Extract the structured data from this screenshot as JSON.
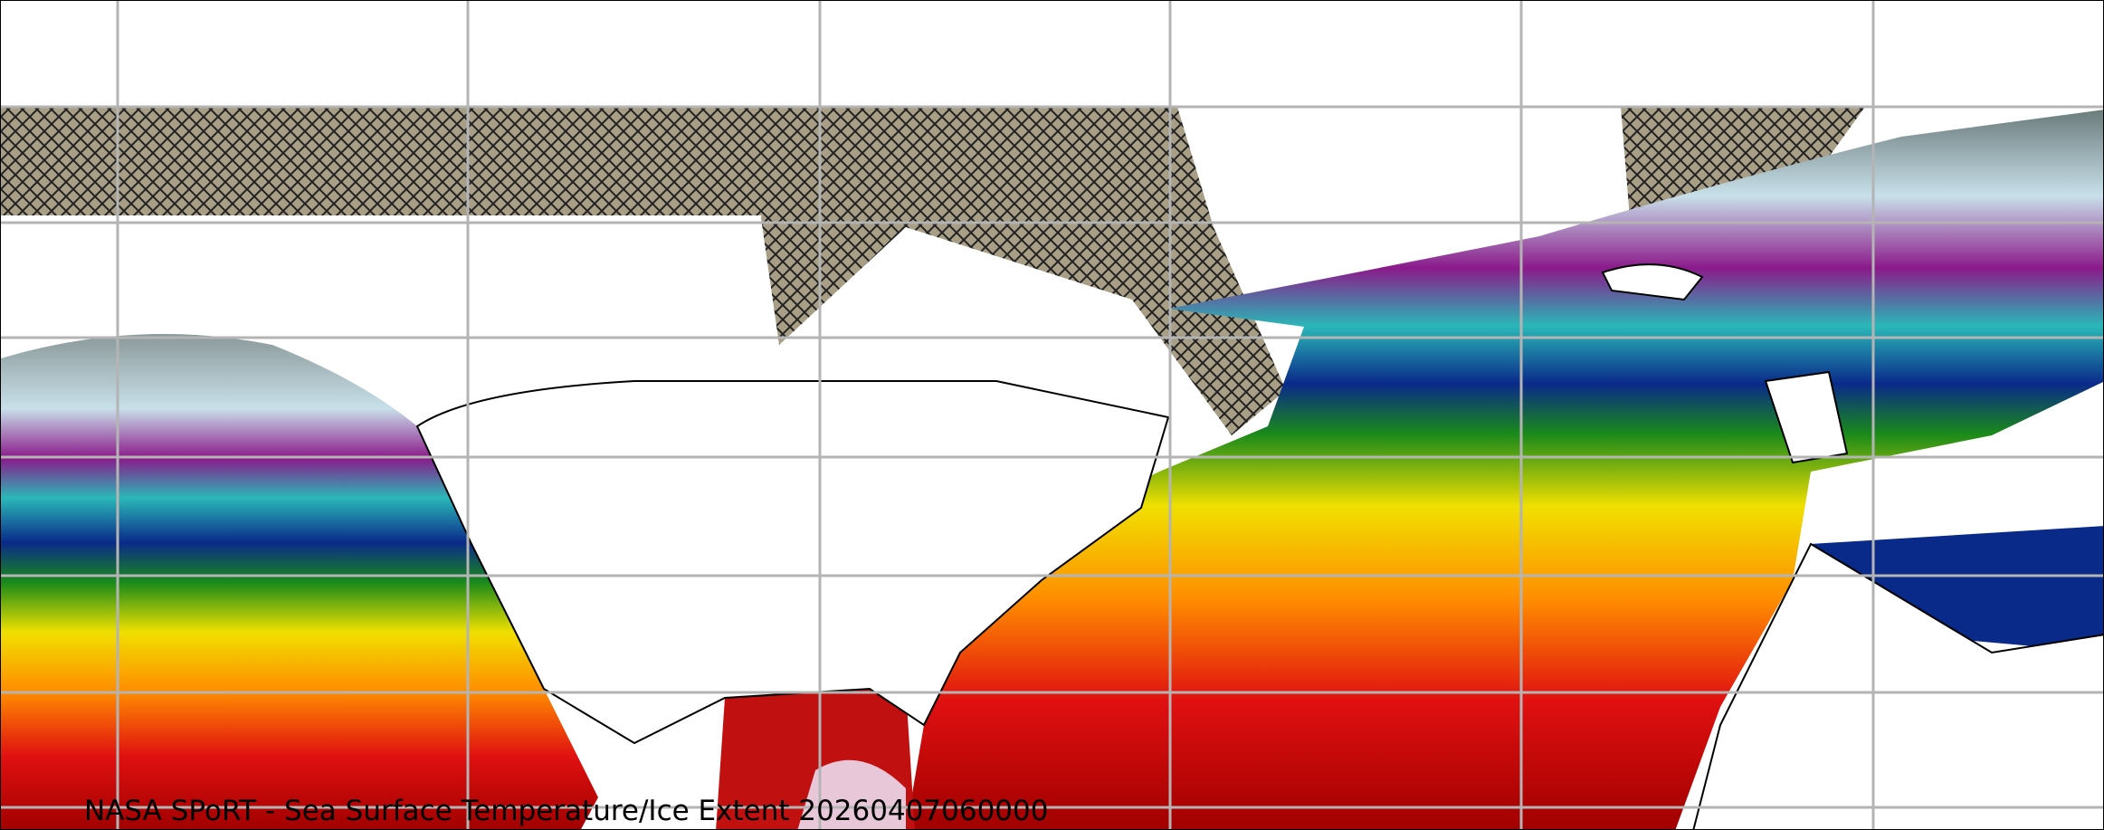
{
  "caption": "NASA SPoRT - Sea Surface Temperature/Ice Extent 20260407060000",
  "colors": {
    "ice_hatch_fill": "#a89e86",
    "cold_gray": "#6b7b7b",
    "pale_ice_blue": "#c8e0ea",
    "purple": "#8a1a8a",
    "teal": "#2ab8b8",
    "navy": "#0a2a8a",
    "green": "#1a8a1a",
    "yellow": "#f0e000",
    "orange": "#ff8c00",
    "red": "#e01010",
    "dark_red": "#a00000",
    "warm_pink": "#e8c8d8",
    "gridline": "#b4b4b4",
    "land": "#ffffff"
  }
}
